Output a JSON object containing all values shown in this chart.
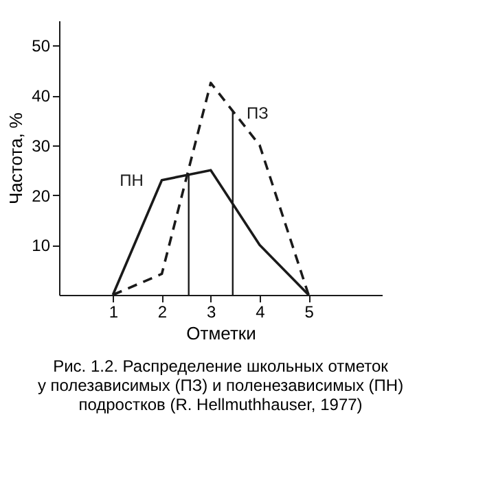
{
  "chart_data": {
    "type": "line",
    "xlabel": "Отметки",
    "ylabel": "Частота, %",
    "x": [
      1,
      2,
      3,
      4,
      5
    ],
    "series": [
      {
        "name": "ПН",
        "color": "#1a1a1a",
        "line_style": "solid",
        "values": [
          0,
          23,
          25,
          10,
          0
        ]
      },
      {
        "name": "ПЗ",
        "color": "#1a1a1a",
        "line_style": "dashed",
        "values": [
          0,
          4.2,
          42.5,
          30,
          0
        ]
      }
    ],
    "xlim": [
      -0.1,
      6.5
    ],
    "xticks": [
      1,
      2,
      3,
      4,
      5
    ],
    "ylim": [
      0,
      55
    ],
    "yticks": [
      10,
      20,
      30,
      40,
      50
    ],
    "ref_lines": [
      {
        "axis": "x",
        "value": 2.55,
        "color": "#1a1a1a"
      },
      {
        "axis": "x",
        "value": 3.45,
        "color": "#1a1a1a"
      }
    ],
    "grid": false,
    "marker": "none",
    "annotations": [
      "Рис. 1.2. Распределение школьных отметок",
      "у полезависимых (ПЗ) и поленезависимых (ПН)",
      "подростков (R. Hellmuthhauser, 1977)"
    ]
  }
}
